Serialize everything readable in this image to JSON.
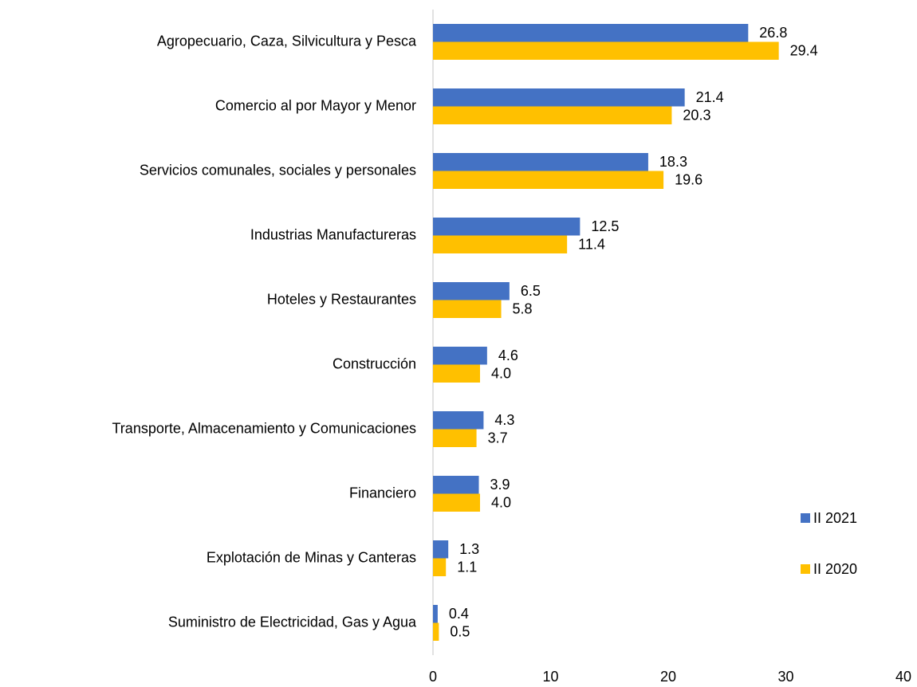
{
  "chart_data": {
    "type": "hbar",
    "categories": [
      "Agropecuario, Caza, Silvicultura y Pesca",
      "Comercio al por Mayor y Menor",
      "Servicios comunales, sociales y personales",
      "Industrias Manufactureras",
      "Hoteles y Restaurantes",
      "Construcción",
      "Transporte, Almacenamiento y Comunicaciones",
      "Financiero",
      "Explotación de Minas y Canteras",
      "Suministro de Electricidad, Gas y Agua"
    ],
    "series": [
      {
        "name": "II 2021",
        "color": "#4472c4",
        "values": [
          26.8,
          21.4,
          18.3,
          12.5,
          6.5,
          4.6,
          4.3,
          3.9,
          1.3,
          0.4
        ],
        "value_labels": [
          "26.8",
          "21.4",
          "18.3",
          "12.5",
          "6.5",
          "4.6",
          "4.3",
          "3.9",
          "1.3",
          "0.4"
        ]
      },
      {
        "name": "II 2020",
        "color": "#ffc000",
        "values": [
          29.4,
          20.3,
          19.6,
          11.4,
          5.8,
          4,
          3.7,
          4,
          1.1,
          0.5
        ],
        "value_labels": [
          "29.4",
          "20.3",
          "19.6",
          "11.4",
          "5.8",
          "4.0",
          "3.7",
          "4.0",
          "1.1",
          "0.5"
        ]
      }
    ],
    "xlim": [
      0,
      40
    ],
    "xticks": [
      0,
      10,
      20,
      30,
      40
    ],
    "grid": false,
    "legend": "lower right"
  }
}
